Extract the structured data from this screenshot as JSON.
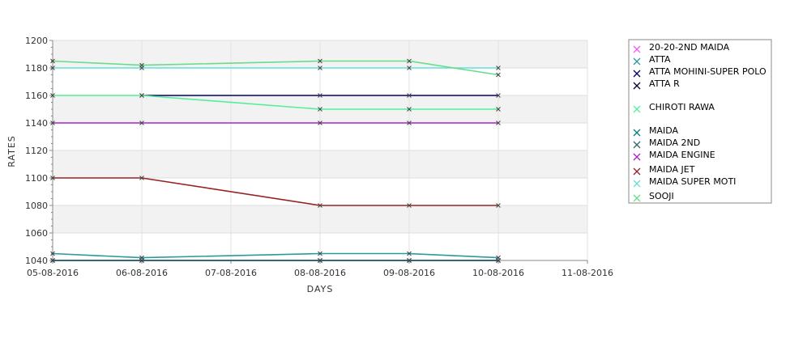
{
  "chart_data": {
    "type": "line",
    "xlabel": "DAYS",
    "ylabel": "RATES",
    "ylim": [
      1040,
      1200
    ],
    "y_ticks": [
      1040,
      1060,
      1080,
      1100,
      1120,
      1140,
      1160,
      1180,
      1200
    ],
    "x_categories": [
      "05-08-2016",
      "06-08-2016",
      "07-08-2016",
      "08-08-2016",
      "09-08-2016",
      "10-08-2016",
      "11-08-2016"
    ],
    "x_range": [
      0,
      6
    ],
    "grid": true,
    "legend_position": "right",
    "series": [
      {
        "name": "20-20-2ND MAIDA",
        "color": "#ff55ff",
        "marker": "x",
        "x": [
          0,
          1,
          3,
          4,
          5
        ],
        "y": [
          1040,
          1040,
          1040,
          1040,
          1040
        ]
      },
      {
        "name": "ATTA",
        "color": "#2a9a9a",
        "marker": "x",
        "x": [
          0,
          1,
          3,
          4,
          5
        ],
        "y": [
          1045,
          1042,
          1045,
          1045,
          1042
        ]
      },
      {
        "name": "ATTA MOHINI-SUPER POLO",
        "color": "#000066",
        "marker": "x",
        "x": [
          1,
          3,
          4,
          5
        ],
        "y": [
          1160,
          1160,
          1160,
          1160
        ]
      },
      {
        "name": "ATTA R",
        "color": "#000033",
        "marker": "x",
        "x": [
          0,
          1,
          3,
          4,
          5
        ],
        "y": [
          1040,
          1040,
          1040,
          1040,
          1040
        ]
      },
      {
        "name": "CHIROTI RAWA",
        "color": "#55ee99",
        "marker": "x",
        "x": [
          0,
          1,
          3,
          4,
          5
        ],
        "y": [
          1160,
          1160,
          1150,
          1150,
          1150
        ]
      },
      {
        "name": "MAIDA",
        "color": "#008080",
        "marker": "x",
        "x": [
          0,
          1,
          3,
          4,
          5
        ],
        "y": [
          1040,
          1040,
          1040,
          1040,
          1040
        ]
      },
      {
        "name": "MAIDA 2ND",
        "color": "#336666",
        "marker": "x",
        "x": [
          0,
          1,
          3,
          4,
          5
        ],
        "y": [
          1040,
          1040,
          1040,
          1040,
          1040
        ]
      },
      {
        "name": "MAIDA ENGINE",
        "color": "#aa22cc",
        "marker": "x",
        "x": [
          0,
          1,
          3,
          4,
          5
        ],
        "y": [
          1140,
          1140,
          1140,
          1140,
          1140
        ]
      },
      {
        "name": "MAIDA JET",
        "color": "#992222",
        "marker": "x",
        "x": [
          0,
          1,
          3,
          4,
          5
        ],
        "y": [
          1100,
          1100,
          1080,
          1080,
          1080
        ]
      },
      {
        "name": "MAIDA SUPER MOTI",
        "color": "#66dddd",
        "marker": "x",
        "x": [
          0,
          1,
          3,
          4,
          5
        ],
        "y": [
          1180,
          1180,
          1180,
          1180,
          1180
        ]
      },
      {
        "name": "SOOJI",
        "color": "#66dd88",
        "marker": "x",
        "x": [
          0,
          1,
          3,
          4,
          5
        ],
        "y": [
          1185,
          1182,
          1185,
          1185,
          1175
        ]
      }
    ]
  }
}
